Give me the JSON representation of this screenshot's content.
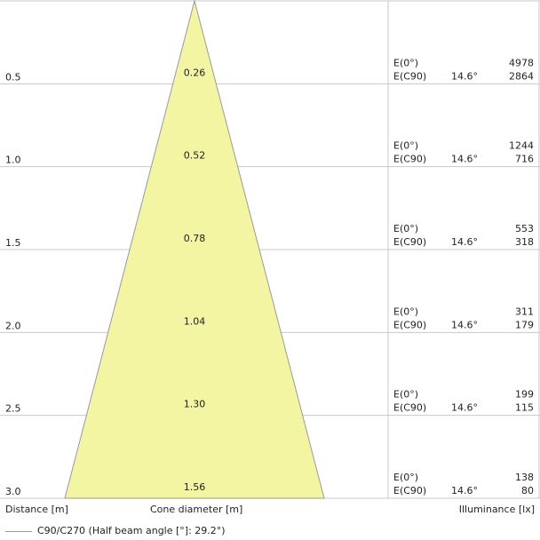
{
  "chart_data": {
    "type": "table",
    "distances": [
      "0.5",
      "1.0",
      "1.5",
      "2.0",
      "2.5",
      "3.0"
    ],
    "cone_diameters": [
      "0.26",
      "0.52",
      "0.78",
      "1.04",
      "1.30",
      "1.56"
    ],
    "label_center": "E(0°)",
    "label_c90": "E(C90)",
    "half_angle_text": "14.6°",
    "illuminance_center": [
      "4978",
      "1244",
      "553",
      "311",
      "199",
      "138"
    ],
    "illuminance_c90": [
      "2864",
      "716",
      "318",
      "179",
      "115",
      "80"
    ],
    "xlabel_distance": "Distance [m]",
    "xlabel_cone": "Cone diameter [m]",
    "xlabel_illuminance": "Illuminance [lx]",
    "legend": "C90/C270 (Half beam angle [°]: 29.2°)",
    "half_beam_angle_deg": 29.2,
    "max_distance_m": 3.0,
    "cone_fill": "#f3f5a3",
    "line_color": "#9a9a9a",
    "grid_color": "#c8c8c8"
  }
}
